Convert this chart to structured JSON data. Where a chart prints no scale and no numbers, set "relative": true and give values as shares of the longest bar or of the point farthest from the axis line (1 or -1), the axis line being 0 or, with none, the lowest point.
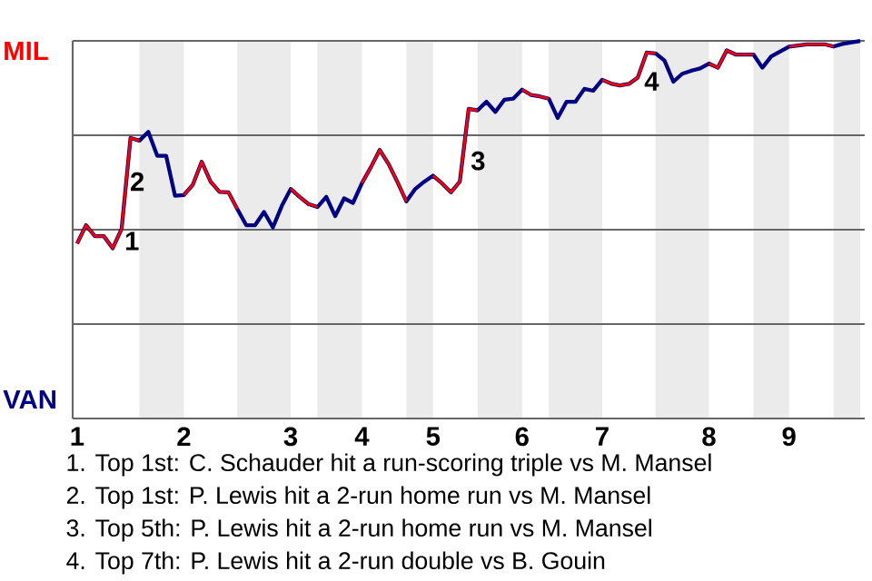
{
  "chart_data": {
    "type": "line",
    "relative": true,
    "categories": [
      "1",
      null,
      null,
      null,
      null,
      null,
      null,
      null,
      null,
      null,
      null,
      null,
      "2",
      null,
      null,
      null,
      null,
      null,
      null,
      null,
      null,
      null,
      null,
      null,
      "3",
      null,
      null,
      null,
      null,
      null,
      null,
      null,
      "4",
      null,
      null,
      null,
      null,
      null,
      null,
      null,
      "5",
      null,
      null,
      null,
      null,
      null,
      null,
      null,
      null,
      null,
      "6",
      null,
      null,
      null,
      null,
      null,
      null,
      null,
      null,
      "7",
      null,
      null,
      null,
      null,
      null,
      null,
      null,
      null,
      null,
      null,
      null,
      "8",
      null,
      null,
      null,
      null,
      null,
      null,
      null,
      null,
      "9",
      null,
      null,
      null,
      null,
      null,
      null,
      null,
      null
    ],
    "grid": "y",
    "line_style": "solid",
    "series": [
      {
        "color": "#000080",
        "values": [
          0.463,
          0.512,
          0.483,
          0.483,
          0.451,
          0.502,
          0.743,
          0.736,
          0.759,
          0.696,
          0.696,
          0.59,
          0.592,
          0.619,
          0.68,
          0.627,
          0.6,
          0.599,
          0.555,
          0.512,
          0.512,
          0.547,
          0.506,
          0.563,
          0.608,
          0.587,
          0.568,
          0.56,
          0.587,
          0.536,
          0.583,
          0.571,
          0.623,
          0.665,
          0.711,
          0.674,
          0.626,
          0.575,
          0.608,
          0.627,
          0.643,
          0.623,
          0.599,
          0.627,
          0.82,
          0.816,
          0.839,
          0.812,
          0.844,
          0.847,
          0.871,
          0.857,
          0.853,
          0.847,
          0.796,
          0.839,
          0.839,
          0.873,
          0.868,
          0.897,
          0.887,
          0.882,
          0.886,
          0.903,
          0.969,
          0.967,
          0.948,
          0.892,
          0.913,
          0.921,
          0.927,
          0.94,
          0.929,
          0.975,
          0.964,
          0.964,
          0.964,
          0.929,
          0.959,
          0.972,
          0.985,
          0.988,
          0.991,
          0.991,
          0.991,
          0.985,
          0.992,
          0.996,
          1.0
        ]
      },
      {
        "color": "#ff0000",
        "values": [
          0.463,
          0.512,
          0.483,
          0.483,
          0.451,
          0.502,
          0.743,
          0.736,
          null,
          null,
          null,
          null,
          0.592,
          0.619,
          0.68,
          0.627,
          0.6,
          0.599,
          0.555,
          null,
          null,
          null,
          null,
          null,
          0.608,
          0.587,
          0.568,
          0.56,
          null,
          null,
          null,
          null,
          0.623,
          0.665,
          0.711,
          0.674,
          0.626,
          0.575,
          null,
          null,
          0.643,
          0.623,
          0.599,
          0.627,
          0.82,
          0.816,
          null,
          null,
          null,
          null,
          0.871,
          0.857,
          0.853,
          0.847,
          null,
          null,
          null,
          null,
          null,
          0.897,
          0.887,
          0.882,
          0.886,
          0.903,
          0.969,
          0.967,
          null,
          null,
          null,
          null,
          null,
          0.94,
          0.929,
          0.975,
          0.964,
          0.964,
          0.964,
          null,
          null,
          null,
          0.985,
          0.988,
          0.991,
          0.991,
          0.991,
          0.985,
          null,
          null,
          null
        ]
      }
    ],
    "annotations": [
      "MIL",
      "VAN",
      "1",
      "2",
      "3",
      "4",
      "1. Top 1st: C. Schauder hit a run-scoring triple vs M. Mansel",
      "2. Top 1st: P. Lewis hit a 2-run home run vs M. Mansel",
      "3. Top 5th: P. Lewis hit a 2-run home run vs M. Mansel",
      "4. Top 7th: P. Lewis hit a 2-run double vs B. Gouin"
    ]
  }
}
